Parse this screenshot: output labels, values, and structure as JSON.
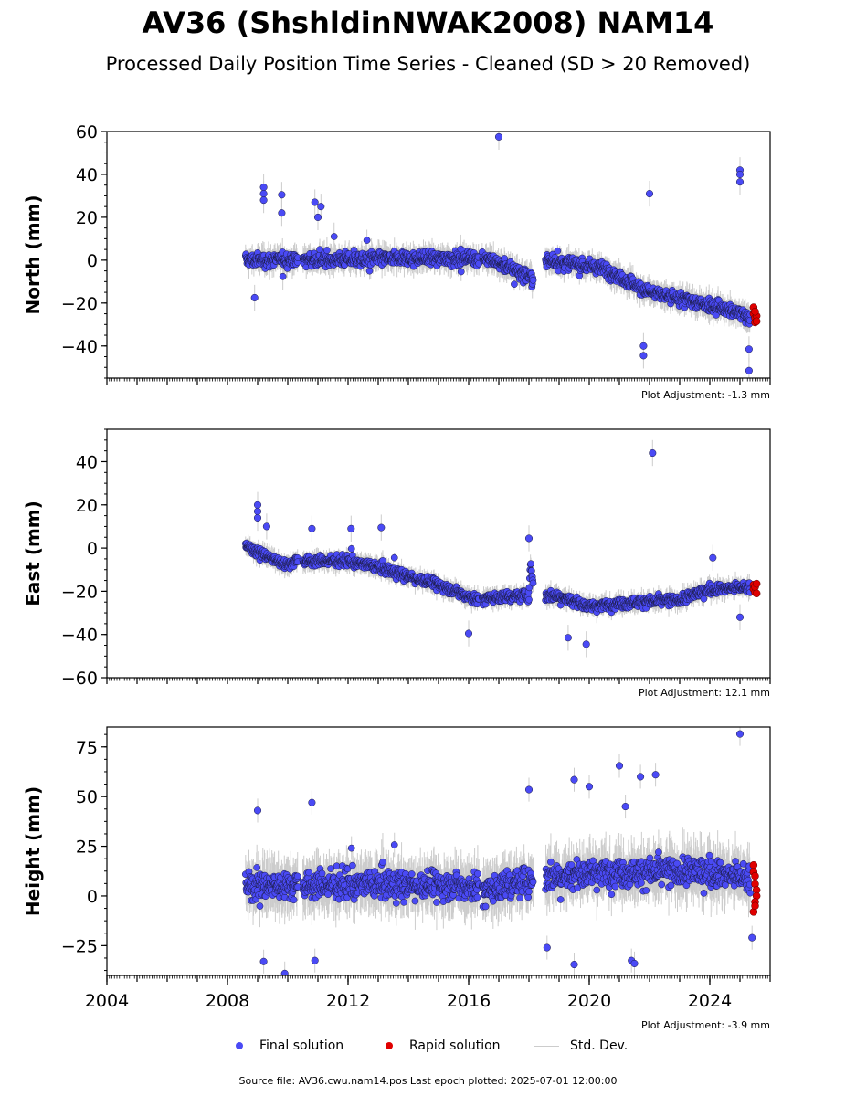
{
  "title": "AV36 (ShshldinNWAK2008) NAM14",
  "subtitle": "Processed Daily Position Time Series - Cleaned (SD > 20 Removed)",
  "source_text": "Source file: AV36.cwu.nam14.pos  Last epoch plotted: 2025-07-01 12:00:00",
  "legend": {
    "final": "Final solution",
    "rapid": "Rapid solution",
    "std": "Std. Dev."
  },
  "colors": {
    "final": "#4a4af5",
    "rapid": "#e00000",
    "std": "#cccccc"
  },
  "chart_data": [
    {
      "type": "scatter",
      "ylabel": "North (mm)",
      "adjustment": "Plot Adjustment: -1.3 mm",
      "xlim": [
        2004,
        2026
      ],
      "ylim": [
        -55,
        60
      ],
      "yticks": [
        -40,
        -20,
        0,
        20,
        40,
        60
      ],
      "trend": [
        [
          2008.6,
          0
        ],
        [
          2016.3,
          1
        ],
        [
          2016.4,
          2
        ],
        [
          2018.3,
          -9
        ],
        [
          2018.6,
          0
        ],
        [
          2020.5,
          -4
        ],
        [
          2022,
          -15
        ],
        [
          2024,
          -21
        ],
        [
          2025.5,
          -27
        ]
      ],
      "noise": 4,
      "outliers": [
        [
          2017.0,
          57.5
        ],
        [
          2022.0,
          31
        ],
        [
          2025.0,
          42
        ],
        [
          2025.0,
          40
        ],
        [
          2025.0,
          36.5
        ],
        [
          2009.2,
          34
        ],
        [
          2009.2,
          31
        ],
        [
          2009.2,
          28
        ],
        [
          2009.8,
          30.5
        ],
        [
          2009.8,
          22
        ],
        [
          2010.9,
          27
        ],
        [
          2011.1,
          25
        ],
        [
          2011.0,
          20
        ],
        [
          2008.9,
          -17.5
        ],
        [
          2025.3,
          -51.5
        ],
        [
          2025.3,
          -41.5
        ],
        [
          2021.8,
          -44.5
        ],
        [
          2021.8,
          -40
        ]
      ],
      "rapid": [
        [
          2025.45,
          -22
        ],
        [
          2025.45,
          -25
        ],
        [
          2025.5,
          -27
        ],
        [
          2025.5,
          -29
        ],
        [
          2025.55,
          -26
        ],
        [
          2025.55,
          -28.5
        ],
        [
          2025.5,
          -24
        ]
      ]
    },
    {
      "type": "scatter",
      "ylabel": "East (mm)",
      "adjustment": "Plot Adjustment: 12.1 mm",
      "xlim": [
        2004,
        2026
      ],
      "ylim": [
        -60,
        55
      ],
      "yticks": [
        -60,
        -40,
        -20,
        0,
        20,
        40
      ],
      "trend": [
        [
          2008.6,
          1
        ],
        [
          2009.5,
          -5
        ],
        [
          2010.0,
          -8
        ],
        [
          2010.2,
          -6
        ],
        [
          2012.0,
          -6
        ],
        [
          2013.0,
          -9
        ],
        [
          2015.0,
          -17
        ],
        [
          2016.3,
          -24
        ],
        [
          2016.6,
          -23
        ],
        [
          2018.0,
          -22
        ],
        [
          2018.05,
          -7
        ],
        [
          2018.2,
          -22
        ],
        [
          2019.0,
          -22
        ],
        [
          2020.0,
          -27
        ],
        [
          2021.5,
          -25
        ],
        [
          2023.0,
          -24
        ],
        [
          2024.0,
          -19
        ],
        [
          2025.5,
          -18
        ]
      ],
      "noise": 3,
      "outliers": [
        [
          2022.1,
          44
        ],
        [
          2009.0,
          20
        ],
        [
          2009.0,
          17
        ],
        [
          2009.0,
          14
        ],
        [
          2009.3,
          10
        ],
        [
          2010.8,
          9
        ],
        [
          2012.1,
          9
        ],
        [
          2013.1,
          9.5
        ],
        [
          2018.0,
          4.5
        ],
        [
          2019.9,
          -44.5
        ],
        [
          2019.3,
          -41.5
        ],
        [
          2016.0,
          -39.5
        ],
        [
          2024.1,
          -4.5
        ],
        [
          2025.0,
          -32
        ]
      ],
      "rapid": [
        [
          2025.45,
          -17
        ],
        [
          2025.45,
          -19
        ],
        [
          2025.5,
          -20.5
        ],
        [
          2025.5,
          -18
        ],
        [
          2025.55,
          -21
        ],
        [
          2025.55,
          -16.5
        ]
      ]
    },
    {
      "type": "scatter",
      "ylabel": "Height (mm)",
      "adjustment": "Plot Adjustment: -3.9 mm",
      "xlim": [
        2004,
        2026
      ],
      "ylim": [
        -40,
        85
      ],
      "yticks": [
        -25,
        0,
        25,
        50,
        75
      ],
      "xticks": [
        2004,
        2008,
        2012,
        2016,
        2020,
        2024
      ],
      "trend": [
        [
          2008.6,
          5
        ],
        [
          2012.0,
          6
        ],
        [
          2016.3,
          5
        ],
        [
          2016.5,
          3
        ],
        [
          2018.0,
          8
        ],
        [
          2018.6,
          10
        ],
        [
          2020.0,
          12
        ],
        [
          2022.0,
          12
        ],
        [
          2024.0,
          12
        ],
        [
          2025.3,
          9
        ]
      ],
      "noise": 9,
      "outliers": [
        [
          2025.0,
          81.5
        ],
        [
          2021.0,
          65.5
        ],
        [
          2022.2,
          61
        ],
        [
          2021.7,
          60
        ],
        [
          2019.5,
          58.5
        ],
        [
          2020.0,
          55
        ],
        [
          2018.0,
          53.5
        ],
        [
          2009.0,
          43
        ],
        [
          2010.8,
          47
        ],
        [
          2021.2,
          45
        ],
        [
          2009.2,
          -33
        ],
        [
          2009.9,
          -39
        ],
        [
          2010.9,
          -32.5
        ],
        [
          2019.5,
          -34.5
        ],
        [
          2021.4,
          -32.5
        ],
        [
          2021.5,
          -34
        ],
        [
          2018.6,
          -26
        ],
        [
          2025.4,
          -21
        ]
      ],
      "rapid": [
        [
          2025.45,
          15.5
        ],
        [
          2025.45,
          12
        ],
        [
          2025.5,
          10
        ],
        [
          2025.5,
          6
        ],
        [
          2025.55,
          3
        ],
        [
          2025.55,
          0
        ],
        [
          2025.5,
          -3
        ],
        [
          2025.45,
          -8
        ],
        [
          2025.5,
          -5
        ]
      ]
    }
  ]
}
